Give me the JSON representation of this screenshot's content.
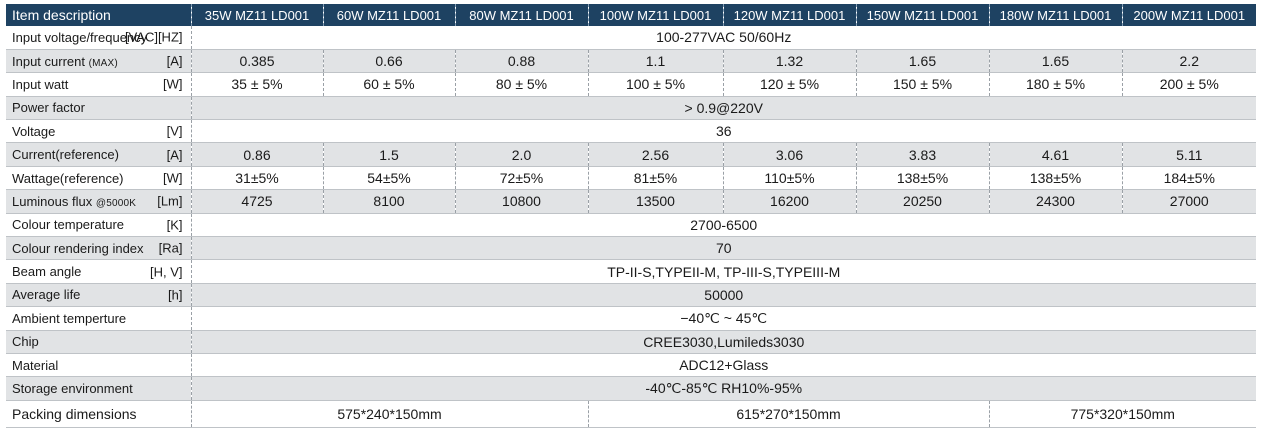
{
  "header": {
    "label": "Item description",
    "models": [
      "35W MZ11 LD001",
      "60W MZ11 LD001",
      "80W  MZ11 LD001",
      "100W  MZ11 LD001",
      "120W MZ11 LD001",
      "150W MZ11 LD001",
      "180W MZ11 LD001",
      "200W MZ11 LD001"
    ]
  },
  "rows": {
    "input_voltage": {
      "label": "Input voltage/frequency",
      "unit": "[VAC][HZ]",
      "value": "100-277VAC  50/60Hz"
    },
    "input_current": {
      "label": "Input current",
      "label_small": "(MAX)",
      "unit": "[A]",
      "values": [
        "0.385",
        "0.66",
        "0.88",
        "1.1",
        "1.32",
        "1.65",
        "1.65",
        "2.2"
      ]
    },
    "input_watt": {
      "label": "Input watt",
      "unit": "[W]",
      "values": [
        "35 ± 5%",
        "60 ± 5%",
        "80 ± 5%",
        "100 ± 5%",
        "120 ± 5%",
        "150 ± 5%",
        "180 ± 5%",
        "200 ± 5%"
      ]
    },
    "power_factor": {
      "label": "Power factor",
      "value": "> 0.9@220V"
    },
    "voltage": {
      "label": "Voltage",
      "unit": "[V]",
      "value": "36"
    },
    "current_ref": {
      "label": "Current(reference)",
      "unit": "[A]",
      "values": [
        "0.86",
        "1.5",
        "2.0",
        "2.56",
        "3.06",
        "3.83",
        "4.61",
        "5.11"
      ]
    },
    "wattage_ref": {
      "label": "Wattage(reference)",
      "unit": "[W]",
      "values": [
        "31±5%",
        "54±5%",
        "72±5%",
        "81±5%",
        "110±5%",
        "138±5%",
        "138±5%",
        "184±5%"
      ]
    },
    "luminous_flux": {
      "label": "Luminous flux",
      "label_small": "@5000K",
      "unit": "[Lm]",
      "values": [
        "4725",
        "8100",
        "10800",
        "13500",
        "16200",
        "20250",
        "24300",
        "27000"
      ]
    },
    "colour_temp": {
      "label": "Colour temperature",
      "unit": "[K]",
      "value": "2700-6500"
    },
    "cri": {
      "label": "Colour rendering index",
      "unit": "[Ra]",
      "value": "70"
    },
    "beam_angle": {
      "label": "Beam angle",
      "unit": "[H, V]",
      "value": "TP-II-S,TYPEII-M,  TP-III-S,TYPEIII-M"
    },
    "average_life": {
      "label": "Average life",
      "unit": "[h]",
      "value": "50000"
    },
    "ambient_temp": {
      "label": "Ambient temperture",
      "value": "−40℃ ~ 45℃"
    },
    "chip": {
      "label": "Chip",
      "value": "CREE3030,Lumileds3030"
    },
    "material": {
      "label": "Material",
      "value": "ADC12+Glass"
    },
    "storage": {
      "label": "Storage environment",
      "value": "-40℃-85℃    RH10%-95%"
    },
    "packing": {
      "label": "Packing dimensions",
      "values": [
        "575*240*150mm",
        "615*270*150mm",
        "775*320*150mm"
      ]
    }
  },
  "colors": {
    "header_bg": "#1e4262",
    "stripe": "#e1e3e5"
  }
}
